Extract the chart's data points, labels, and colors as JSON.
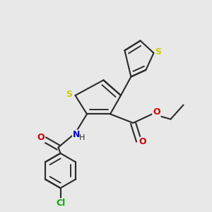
{
  "background_color": "#e8e8e8",
  "bond_color": "#2a2a2a",
  "sulfur_color": "#cccc00",
  "nitrogen_color": "#0000cc",
  "oxygen_color": "#cc0000",
  "chlorine_color": "#00aa00",
  "line_width": 1.5,
  "dbo": 0.12,
  "figsize": [
    3.0,
    3.0
  ],
  "dpi": 100,
  "xlim": [
    0,
    10
  ],
  "ylim": [
    0,
    10
  ]
}
